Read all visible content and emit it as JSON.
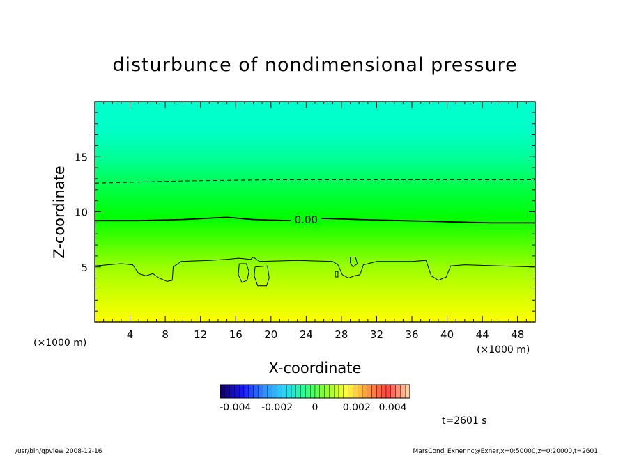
{
  "chart_data": {
    "type": "heatmap",
    "title": "disturbunce of nondimensional pressure",
    "xlabel": "X-coordinate",
    "ylabel": "Z-coordinate",
    "x_unit": "(×1000 m)",
    "x_unit_right": "(×1000 m)",
    "xlim": [
      0,
      50
    ],
    "ylim": [
      0,
      20
    ],
    "xticks": [
      4,
      8,
      12,
      16,
      20,
      24,
      28,
      32,
      36,
      40,
      44,
      48
    ],
    "yticks": [
      5,
      10,
      15
    ],
    "x_tick_labels": [
      "4",
      "8",
      "12",
      "16",
      "20",
      "24",
      "28",
      "32",
      "36",
      "40",
      "44",
      "48"
    ],
    "y_tick_labels": [
      "5",
      "10",
      "15"
    ],
    "field_gradient_by_z": [
      {
        "z": 0.0,
        "color": "#ffff00"
      },
      {
        "z": 2.5,
        "color": "#d2ff00"
      },
      {
        "z": 5.0,
        "color": "#9bff00"
      },
      {
        "z": 7.5,
        "color": "#45ff00"
      },
      {
        "z": 9.5,
        "color": "#00ff00"
      },
      {
        "z": 12.5,
        "color": "#00ff50"
      },
      {
        "z": 15.0,
        "color": "#00ff9a"
      },
      {
        "z": 17.5,
        "color": "#00ffc8"
      },
      {
        "z": 20.0,
        "color": "#00ffcc"
      }
    ],
    "contours": [
      {
        "level": 0.0,
        "label": "0.00",
        "style": "solid-bold",
        "points": [
          [
            0,
            9.2
          ],
          [
            5,
            9.2
          ],
          [
            10,
            9.3
          ],
          [
            15,
            9.5
          ],
          [
            18,
            9.3
          ],
          [
            22,
            9.2
          ],
          [
            26,
            9.4
          ],
          [
            30,
            9.3
          ],
          [
            35,
            9.2
          ],
          [
            40,
            9.1
          ],
          [
            45,
            9.0
          ],
          [
            50,
            9.0
          ]
        ]
      },
      {
        "level": 0.001,
        "label": "",
        "style": "dashed",
        "points": [
          [
            0,
            12.6
          ],
          [
            10,
            12.8
          ],
          [
            20,
            12.9
          ],
          [
            30,
            12.9
          ],
          [
            40,
            12.9
          ],
          [
            50,
            12.9
          ]
        ]
      },
      {
        "level": -0.001,
        "label": "",
        "style": "solid-thin",
        "points": [
          [
            0,
            5.1
          ],
          [
            3,
            5.3
          ],
          [
            4.3,
            5.2
          ],
          [
            5,
            4.4
          ],
          [
            5.8,
            4.2
          ],
          [
            6.6,
            4.4
          ],
          [
            7.3,
            4.0
          ],
          [
            8.2,
            3.7
          ],
          [
            8.8,
            3.8
          ],
          [
            8.9,
            5.0
          ],
          [
            9.8,
            5.5
          ],
          [
            13,
            5.6
          ],
          [
            15,
            5.7
          ],
          [
            16.3,
            5.8
          ],
          [
            17.7,
            5.7
          ],
          [
            18,
            5.9
          ],
          [
            18.7,
            5.5
          ],
          [
            23,
            5.6
          ],
          [
            27,
            5.5
          ],
          [
            27.6,
            5.2
          ],
          [
            28.1,
            4.3
          ],
          [
            28.8,
            4.0
          ],
          [
            29.5,
            4.2
          ],
          [
            30.1,
            4.3
          ],
          [
            30.5,
            5.2
          ],
          [
            32,
            5.5
          ],
          [
            36,
            5.5
          ],
          [
            37.6,
            5.6
          ],
          [
            38.2,
            4.2
          ],
          [
            39,
            3.8
          ],
          [
            39.9,
            4.1
          ],
          [
            40.4,
            5.1
          ],
          [
            42,
            5.2
          ],
          [
            46,
            5.1
          ],
          [
            50,
            5.0
          ]
        ]
      },
      {
        "level": -0.001,
        "label": "",
        "style": "solid-thin",
        "points": [
          [
            16.4,
            5.3
          ],
          [
            17.2,
            5.3
          ],
          [
            17.5,
            4.6
          ],
          [
            17.3,
            3.8
          ],
          [
            16.7,
            3.6
          ],
          [
            16.3,
            4.3
          ],
          [
            16.4,
            5.3
          ]
        ]
      },
      {
        "level": -0.001,
        "label": "",
        "style": "solid-thin",
        "points": [
          [
            18.2,
            5.0
          ],
          [
            19.6,
            5.1
          ],
          [
            19.8,
            4.0
          ],
          [
            19.5,
            3.3
          ],
          [
            18.5,
            3.3
          ],
          [
            18.1,
            4.2
          ],
          [
            18.2,
            5.0
          ]
        ]
      },
      {
        "level": -0.001,
        "label": "",
        "style": "solid-thin",
        "points": [
          [
            29.0,
            5.9
          ],
          [
            29.6,
            5.9
          ],
          [
            29.8,
            5.3
          ],
          [
            29.3,
            5.0
          ],
          [
            29.0,
            5.4
          ],
          [
            29.0,
            5.9
          ]
        ]
      },
      {
        "level": -0.001,
        "label": "",
        "style": "solid-thin",
        "points": [
          [
            27.3,
            4.6
          ],
          [
            27.6,
            4.6
          ],
          [
            27.6,
            4.1
          ],
          [
            27.3,
            4.1
          ],
          [
            27.3,
            4.6
          ]
        ]
      }
    ],
    "colorbar": {
      "range": [
        -0.005,
        0.005
      ],
      "ticks": [
        "-0.004",
        "-0.002",
        "0",
        "0.002",
        "0.004"
      ],
      "colors": [
        "#10006e",
        "#1a1aff",
        "#2f8cff",
        "#20d7ff",
        "#28ff8c",
        "#8cff28",
        "#ffff30",
        "#ffa040",
        "#ff4040",
        "#ffd0a0"
      ]
    }
  },
  "annotations": {
    "time": "t=2601 s",
    "footer_left": "/usr/bin/gpview   2008-12-16",
    "footer_right": "MarsCond_Exner.nc@Exner,x=0:50000,z=0:20000,t=2601"
  }
}
